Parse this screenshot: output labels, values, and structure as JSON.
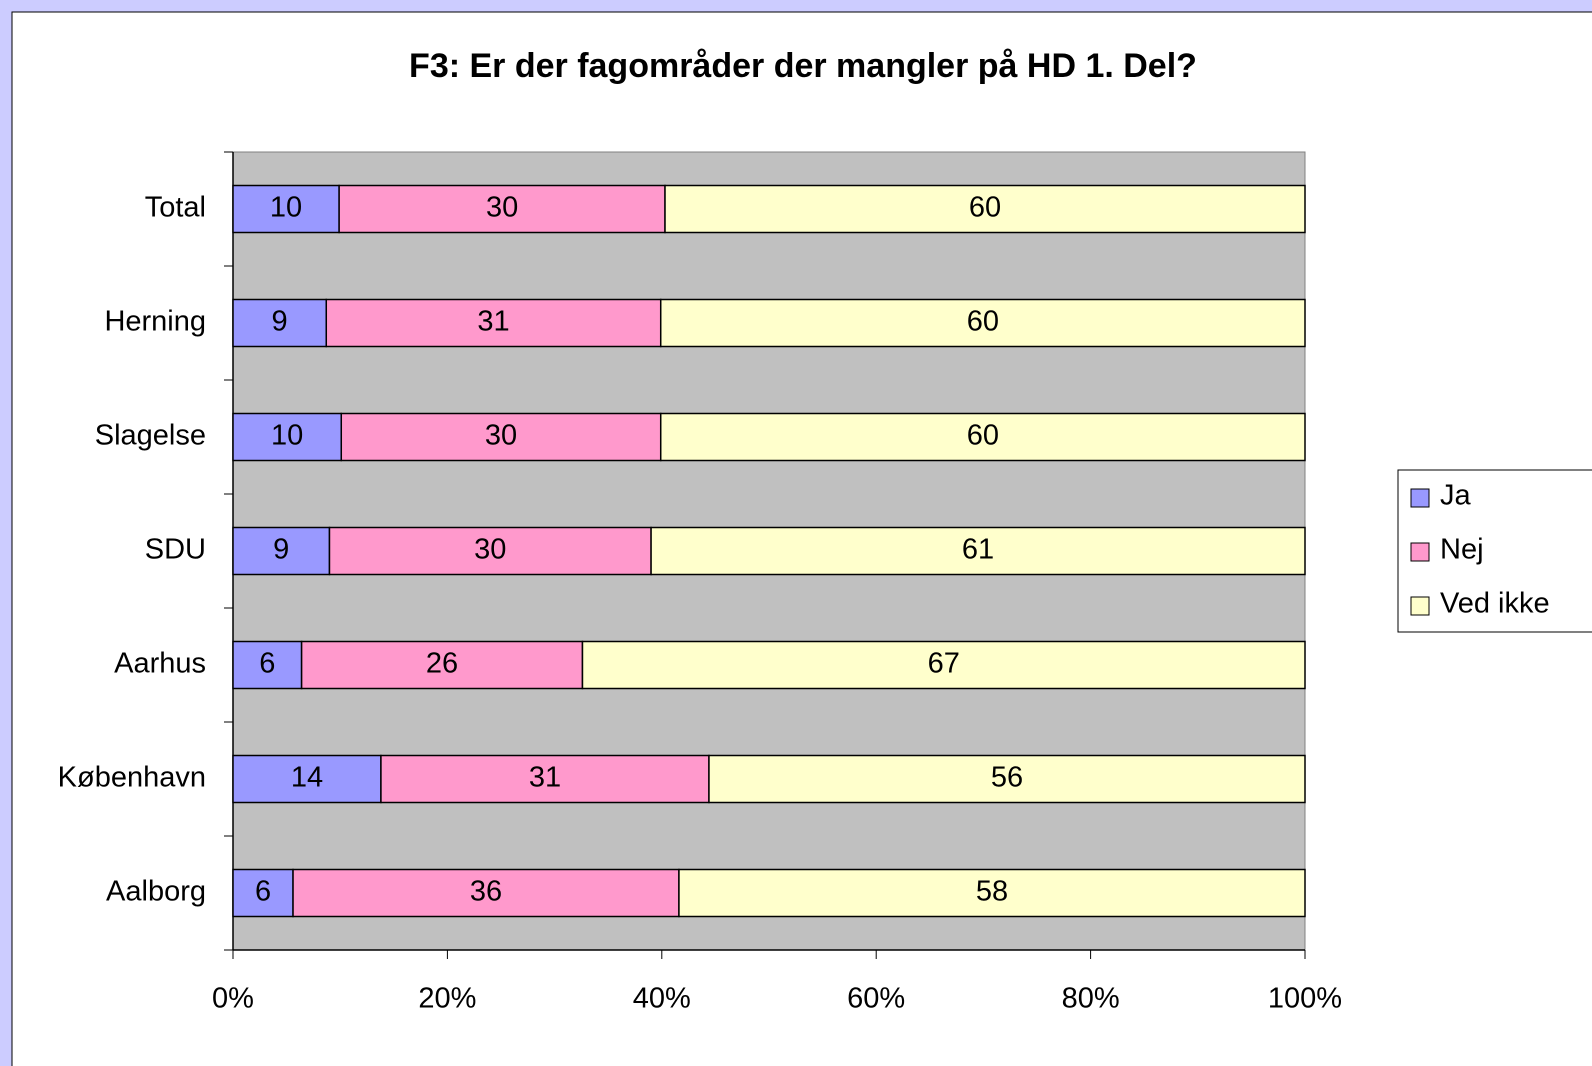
{
  "chart_data": {
    "type": "stacked_barh",
    "title": "F3: Er der fagområder der mangler på HD 1. Del?",
    "categories": [
      "Total",
      "Herning",
      "Slagelse",
      "SDU",
      "Aarhus",
      "København",
      "Aalborg"
    ],
    "series": [
      {
        "name": "Ja",
        "color": "#9999ff",
        "values": [
          9.9,
          8.7,
          10.1,
          9.0,
          6.4,
          13.8,
          5.6
        ],
        "value_labels": [
          "10",
          "9",
          "10",
          "9",
          "6",
          "14",
          "6"
        ]
      },
      {
        "name": "Nej",
        "color": "#ff99cc",
        "values": [
          30.4,
          31.2,
          29.8,
          30.0,
          26.2,
          30.6,
          36.0
        ],
        "value_labels": [
          "30",
          "31",
          "30",
          "30",
          "26",
          "31",
          "36"
        ]
      },
      {
        "name": "Ved ikke",
        "color": "#ffffcc",
        "values": [
          59.7,
          60.1,
          60.1,
          61.0,
          67.4,
          55.6,
          58.4
        ],
        "value_labels": [
          "60",
          "60",
          "60",
          "61",
          "67",
          "56",
          "58"
        ]
      }
    ],
    "xlim": [
      0,
      100
    ],
    "xticks": [
      {
        "value": 0,
        "label": "0%"
      },
      {
        "value": 20,
        "label": "20%"
      },
      {
        "value": 40,
        "label": "40%"
      },
      {
        "value": 60,
        "label": "60%"
      },
      {
        "value": 80,
        "label": "80%"
      },
      {
        "value": 100,
        "label": "100%"
      }
    ],
    "legend": "right"
  }
}
